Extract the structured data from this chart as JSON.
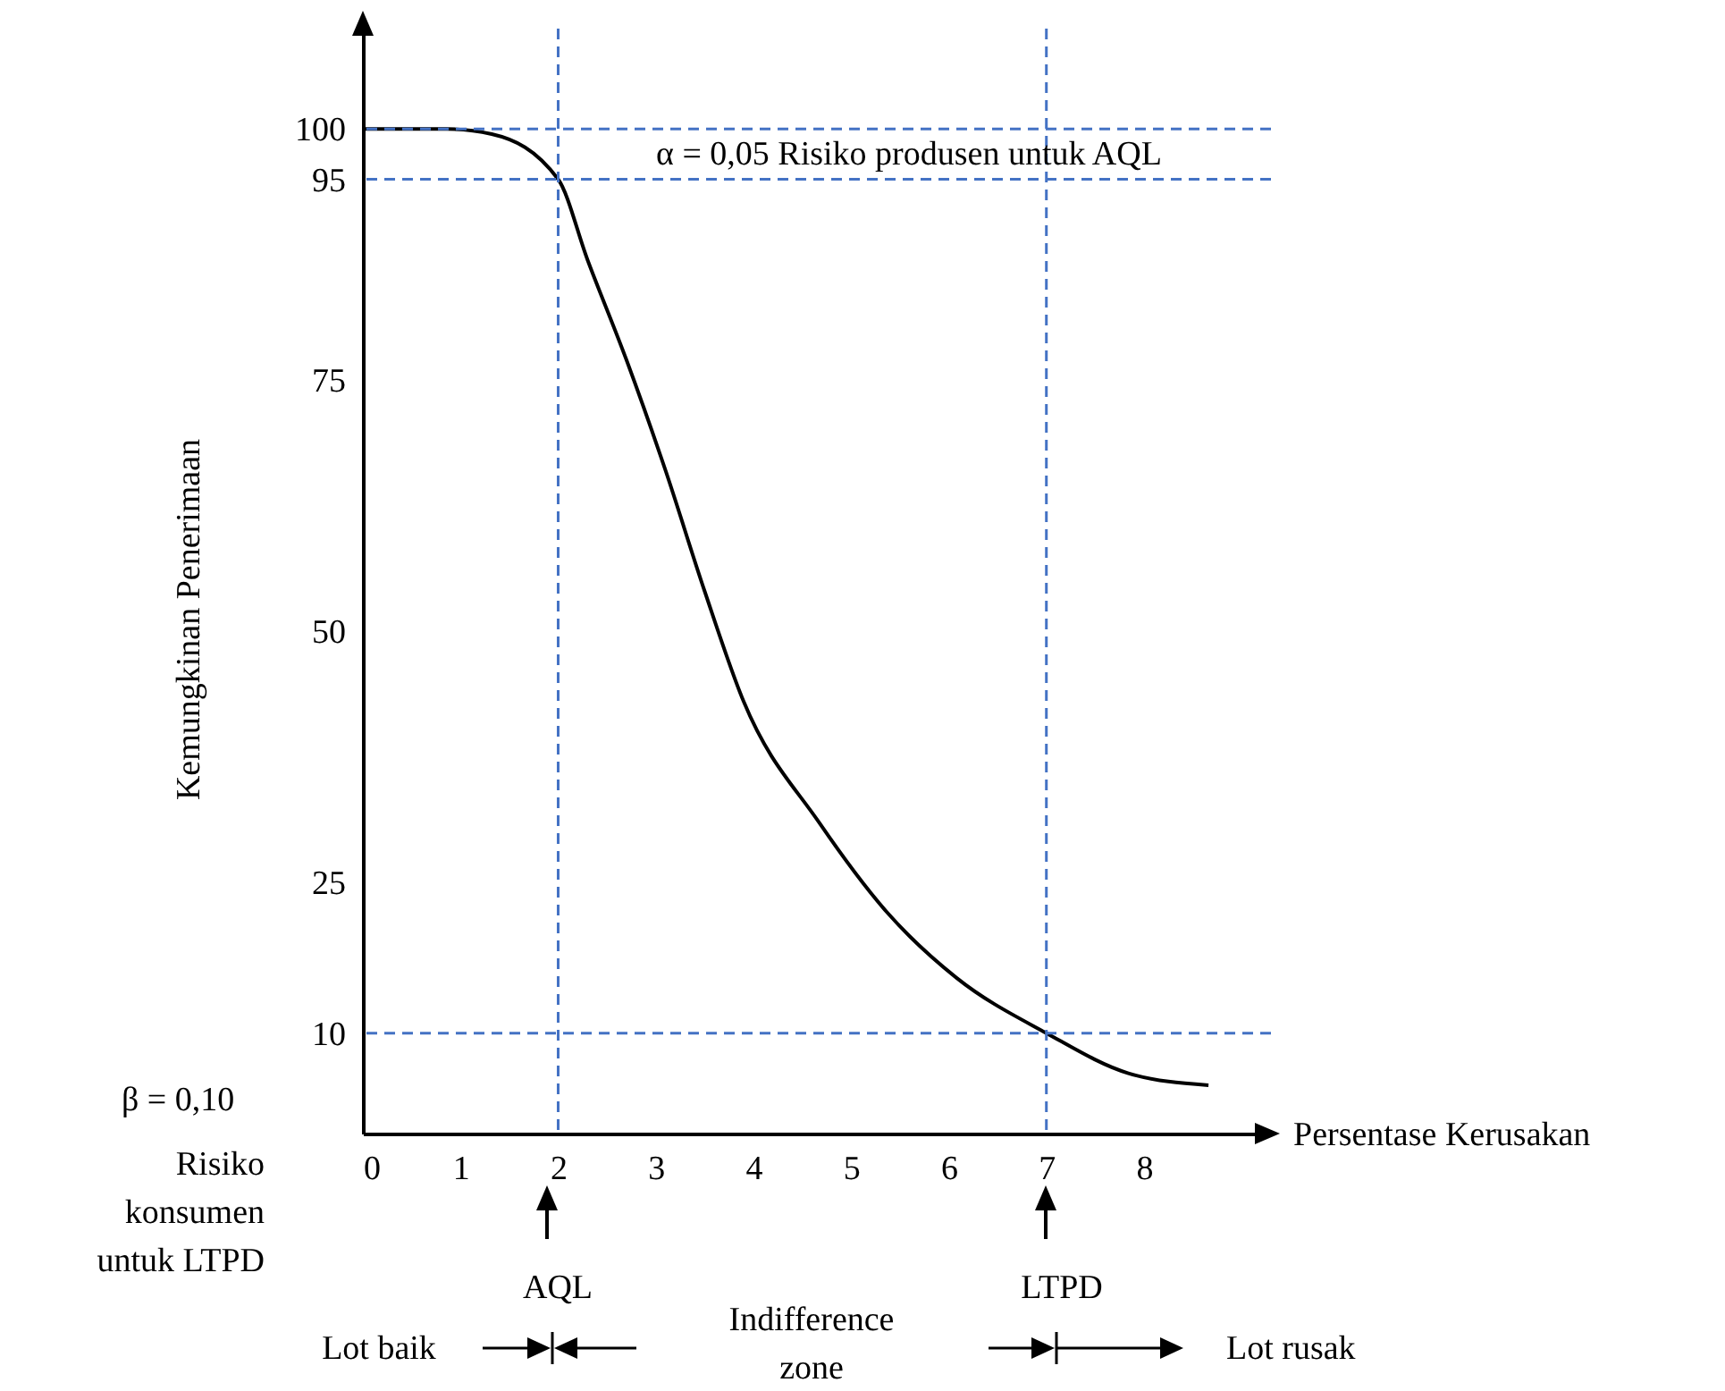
{
  "chart_data": {
    "type": "line",
    "xlabel": "Persentase Kerusakan",
    "ylabel": "Kemungkinan Penerimaan",
    "x": [
      0,
      0.86,
      1.32,
      2,
      2.3,
      2.7,
      3.1,
      3.5,
      3.9,
      4.67,
      5.37,
      6.08,
      7,
      7.84,
      8.66
    ],
    "values": [
      100,
      100,
      99.5,
      95,
      87,
      77,
      66,
      54,
      43,
      31,
      22,
      15.5,
      10,
      6,
      4.8
    ],
    "color": "#000000",
    "marker": "none",
    "line_style": "solid",
    "xlim": [
      0,
      9.3
    ],
    "xticks": [
      0,
      1,
      2,
      3,
      4,
      5,
      6,
      7,
      8
    ],
    "ylim": [
      0,
      110
    ],
    "yticks": [
      10,
      25,
      50,
      75,
      95,
      100
    ],
    "grid": false,
    "ref_lines": [
      {
        "axis": "y",
        "value": 100,
        "color": "#4472c4",
        "line_style": "dashed"
      },
      {
        "axis": "y",
        "value": 95,
        "color": "#4472c4",
        "line_style": "dashed"
      },
      {
        "axis": "y",
        "value": 10,
        "color": "#4472c4",
        "line_style": "dashed"
      },
      {
        "axis": "x",
        "value": 2,
        "color": "#4472c4",
        "line_style": "dashed"
      },
      {
        "axis": "x",
        "value": 7,
        "color": "#4472c4",
        "line_style": "dashed"
      }
    ],
    "annotations": [
      "α = 0,05 Risiko produsen untuk AQL",
      "β = 0,10",
      "Risiko\nkonsumen\nuntuk LTPD",
      "AQL",
      "LTPD",
      "Lot baik",
      "Indifference\nzone",
      "Lot rusak"
    ]
  }
}
